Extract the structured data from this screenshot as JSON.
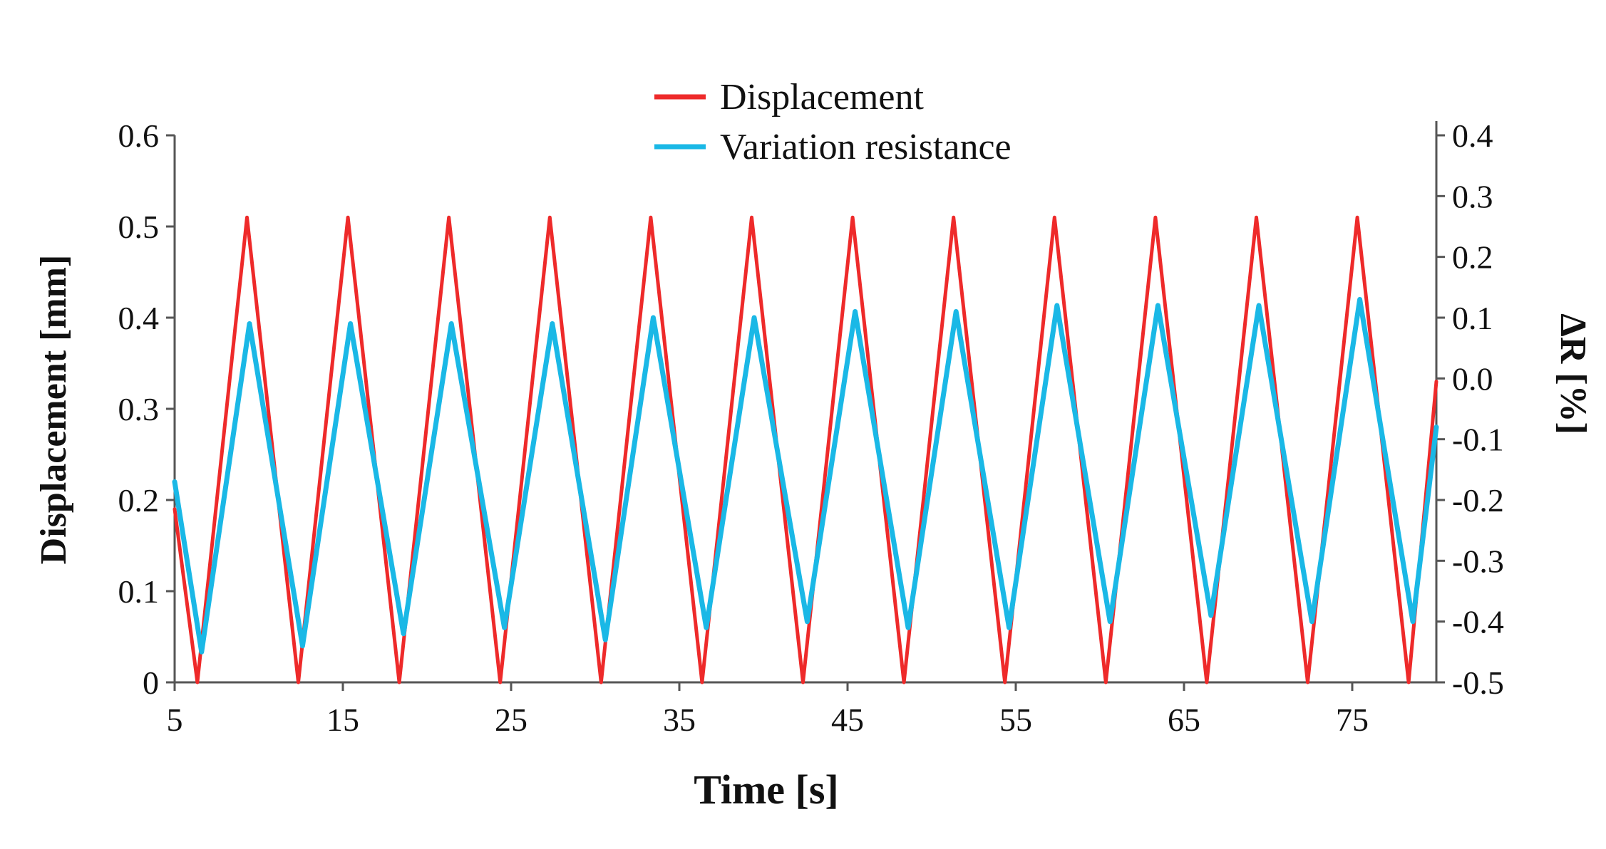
{
  "chart_data": {
    "type": "line",
    "title": "",
    "xlabel": "Time [s]",
    "ylabel_left": "Displacement [mm]",
    "ylabel_right": "ΔR [%]",
    "xlim": [
      5,
      80
    ],
    "ylim_left": [
      0,
      0.6
    ],
    "ylim_right": [
      -0.5,
      0.4
    ],
    "x_ticks": [
      "5",
      "15",
      "25",
      "35",
      "45",
      "55",
      "65",
      "75"
    ],
    "x_tick_values": [
      5,
      15,
      25,
      35,
      45,
      55,
      65,
      75
    ],
    "y_ticks_left": [
      "0",
      "0.1",
      "0.2",
      "0.3",
      "0.4",
      "0.5",
      "0.6"
    ],
    "y_tick_values_left": [
      0,
      0.1,
      0.2,
      0.3,
      0.4,
      0.5,
      0.6
    ],
    "y_ticks_right": [
      "-0.5",
      "-0.4",
      "-0.3",
      "-0.2",
      "-0.1",
      "0.0",
      "0.1",
      "0.2",
      "0.3",
      "0.4"
    ],
    "y_tick_values_right": [
      -0.5,
      -0.4,
      -0.3,
      -0.2,
      -0.1,
      0.0,
      0.1,
      0.2,
      0.3,
      0.4
    ],
    "legend": {
      "position": "top-center",
      "entries": [
        "Displacement",
        "Variation resistance"
      ]
    },
    "grid": false,
    "series": [
      {
        "name": "Displacement",
        "axis": "left",
        "color": "#ee2a2a",
        "x": [
          5,
          6.35,
          9.3,
          12.35,
          15.3,
          18.35,
          21.3,
          24.35,
          27.3,
          30.35,
          33.3,
          36.35,
          39.3,
          42.35,
          45.3,
          48.35,
          51.3,
          54.35,
          57.3,
          60.35,
          63.3,
          66.35,
          69.3,
          72.35,
          75.3,
          78.35,
          80
        ],
        "y": [
          0.19,
          0,
          0.51,
          0,
          0.51,
          0,
          0.51,
          0,
          0.51,
          0,
          0.51,
          0,
          0.51,
          0,
          0.51,
          0,
          0.51,
          0,
          0.51,
          0,
          0.51,
          0,
          0.51,
          0,
          0.51,
          0,
          0.33
        ]
      },
      {
        "name": "Variation resistance",
        "axis": "right",
        "color": "#1ab8e6",
        "x": [
          5,
          6.6,
          9.45,
          12.6,
          15.45,
          18.6,
          21.45,
          24.6,
          27.45,
          30.6,
          33.45,
          36.6,
          39.45,
          42.6,
          45.45,
          48.6,
          51.45,
          54.6,
          57.45,
          60.6,
          63.45,
          66.6,
          69.45,
          72.6,
          75.45,
          78.6,
          80
        ],
        "y": [
          -0.17,
          -0.45,
          0.09,
          -0.44,
          0.09,
          -0.42,
          0.09,
          -0.41,
          0.09,
          -0.43,
          0.1,
          -0.41,
          0.1,
          -0.4,
          0.11,
          -0.41,
          0.11,
          -0.41,
          0.12,
          -0.4,
          0.12,
          -0.39,
          0.12,
          -0.4,
          0.13,
          -0.4,
          -0.08
        ]
      }
    ]
  }
}
